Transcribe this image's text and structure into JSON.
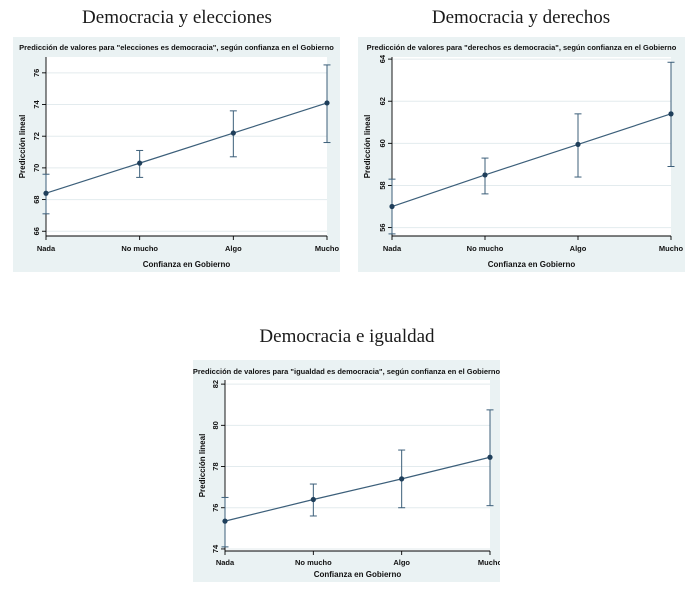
{
  "headings": [
    "Democracia y elecciones",
    "Democracia y derechos",
    "Democracia e igualdad"
  ],
  "colors": {
    "panel_background": "#eaf2f3",
    "plot_background": "#ffffff",
    "line": "#3c5f7a",
    "marker": "#1f3f5b",
    "grid": "#e3ebee",
    "text": "#111111"
  },
  "chart_data": [
    {
      "type": "line",
      "title": "Predicción de valores para \"elecciones es democracia\", según confianza en el Gobierno",
      "xlabel": "Confianza en Gobierno",
      "ylabel": "Predicción lineal",
      "categories": [
        "Nada",
        "No mucho",
        "Algo",
        "Mucho"
      ],
      "values": [
        68.4,
        70.3,
        72.2,
        74.1
      ],
      "ci_low": [
        67.1,
        69.4,
        70.7,
        71.6
      ],
      "ci_high": [
        69.6,
        71.1,
        73.6,
        76.5
      ],
      "yticks": [
        66,
        68,
        70,
        72,
        74,
        76
      ],
      "ylim": [
        65.7,
        77.0
      ],
      "grid": true
    },
    {
      "type": "line",
      "title": "Predicción de valores para \"derechos es democracia\", según confianza en el Gobierno",
      "xlabel": "Confianza en Gobierno",
      "ylabel": "Predicción lineal",
      "categories": [
        "Nada",
        "No mucho",
        "Algo",
        "Mucho"
      ],
      "values": [
        57.0,
        58.5,
        59.95,
        61.4
      ],
      "ci_low": [
        55.7,
        57.6,
        58.4,
        58.9
      ],
      "ci_high": [
        58.3,
        59.3,
        61.4,
        63.85
      ],
      "yticks": [
        56,
        58,
        60,
        62,
        64
      ],
      "ylim": [
        55.6,
        64.1
      ],
      "grid": true
    },
    {
      "type": "line",
      "title": "Predicción de valores para \"igualdad es democracia\", según confianza en el Gobierno",
      "xlabel": "Confianza en Gobierno",
      "ylabel": "Predicción lineal",
      "categories": [
        "Nada",
        "No mucho",
        "Algo",
        "Mucho"
      ],
      "values": [
        75.35,
        76.4,
        77.4,
        78.45
      ],
      "ci_low": [
        74.1,
        75.6,
        76.0,
        76.1
      ],
      "ci_high": [
        76.5,
        77.15,
        78.8,
        80.75
      ],
      "yticks": [
        74,
        76,
        78,
        80,
        82
      ],
      "ylim": [
        73.9,
        82.2
      ],
      "grid": true
    }
  ]
}
